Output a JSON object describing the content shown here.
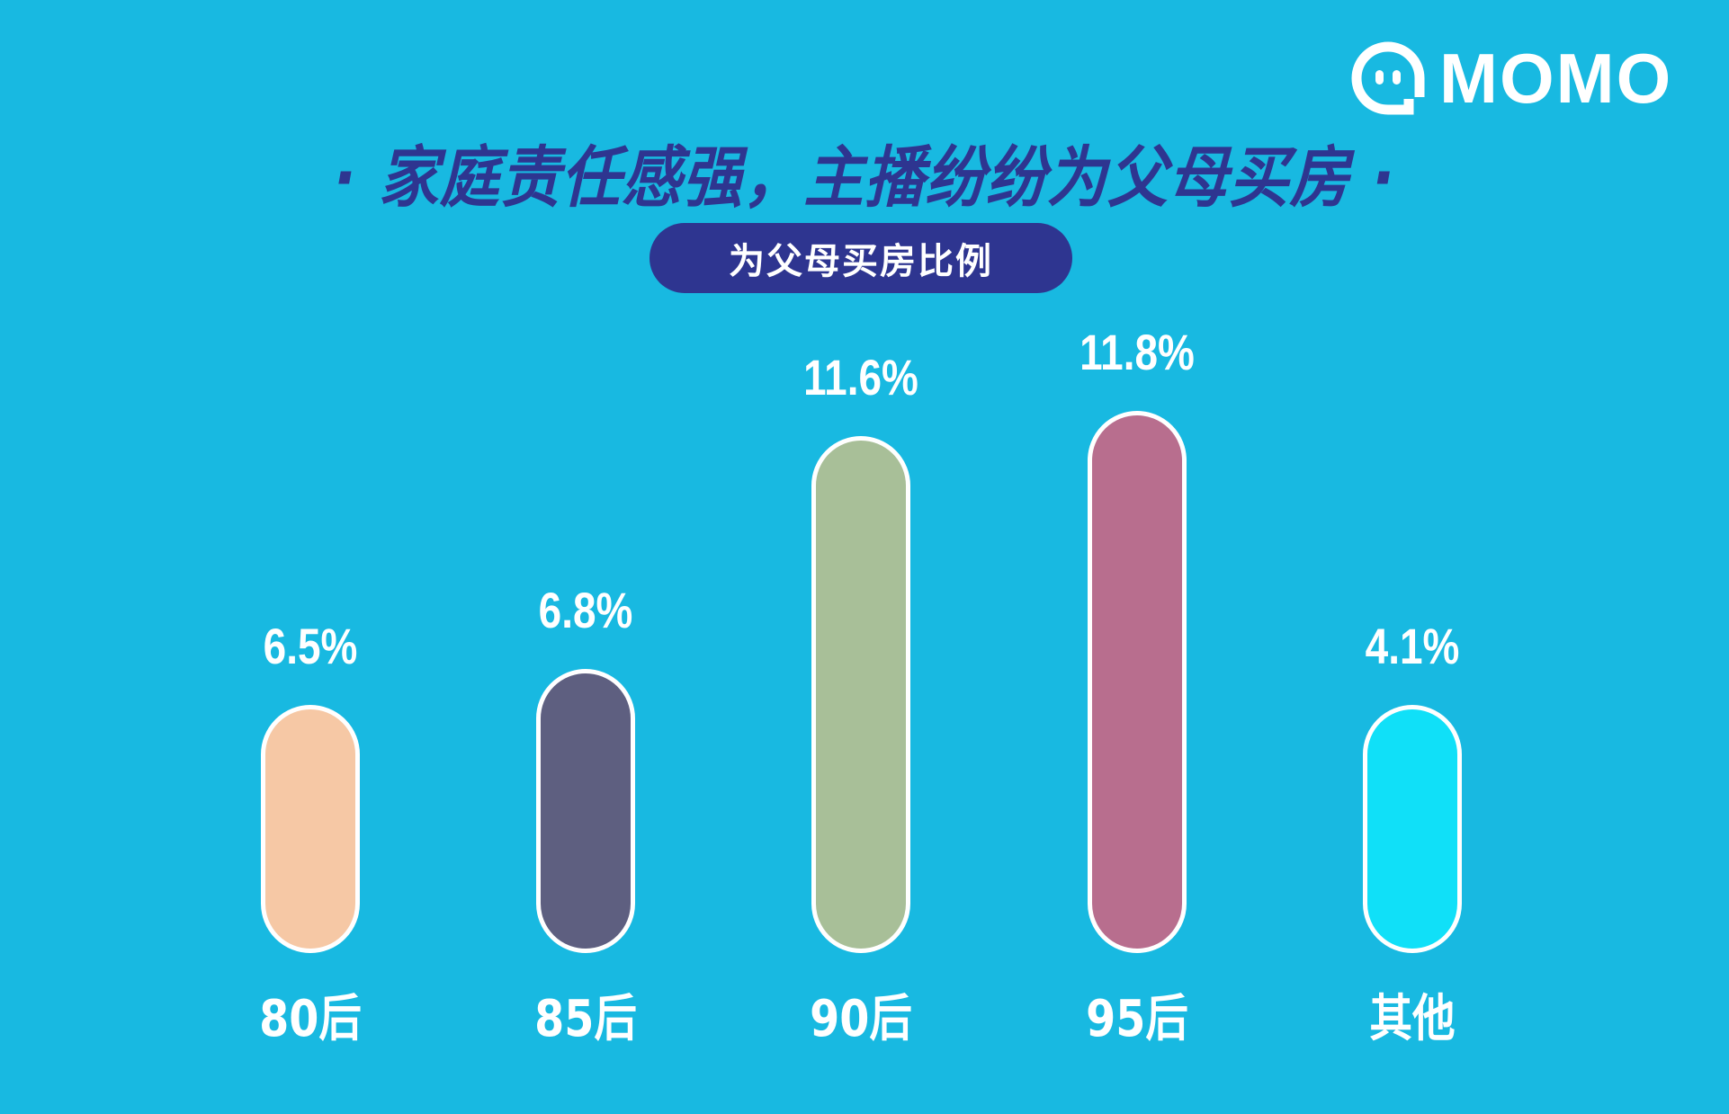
{
  "logo": {
    "icon": "momo-chat-bubble-icon",
    "text": "MOMO"
  },
  "title": "· 家庭责任感强，主播纷纷为父母买房 ·",
  "subtitle_pill": "为父母买房比例",
  "colors": {
    "background": "#18b9e1",
    "title": "#2e3590",
    "pill": "#2e3590",
    "bar_border": "#ffffff"
  },
  "chart_data": {
    "type": "bar",
    "title": "为父母买房比例",
    "xlabel": "",
    "ylabel": "",
    "categories": [
      "80后",
      "85后",
      "90后",
      "95后",
      "其他"
    ],
    "values": [
      6.5,
      6.8,
      11.6,
      11.8,
      4.1
    ],
    "value_labels": [
      "6.5%",
      "6.8%",
      "11.6%",
      "11.8%",
      "4.1%"
    ],
    "bar_colors": [
      "#f6c8a5",
      "#5e5f80",
      "#a8bf98",
      "#b86e8e",
      "#10e0f8"
    ],
    "grid": false,
    "legend": "none"
  }
}
